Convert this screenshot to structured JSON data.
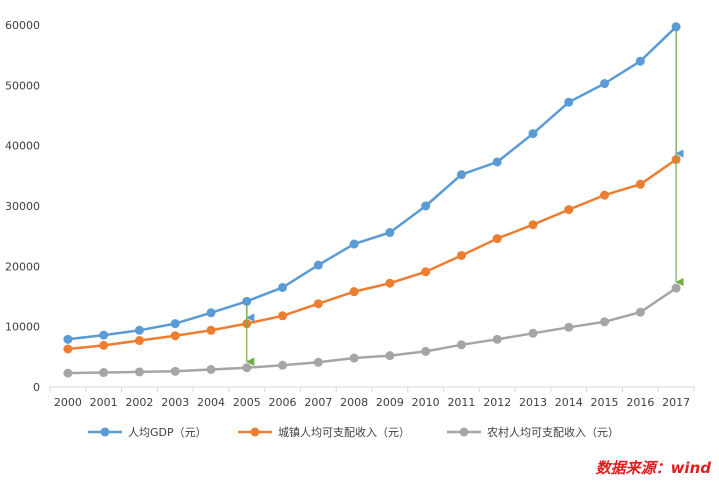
{
  "chart_data": {
    "type": "line",
    "title": "",
    "xlabel": "",
    "ylabel": "",
    "categories": [
      "2000",
      "2001",
      "2002",
      "2003",
      "2004",
      "2005",
      "2006",
      "2007",
      "2008",
      "2009",
      "2010",
      "2011",
      "2012",
      "2013",
      "2014",
      "2015",
      "2016",
      "2017"
    ],
    "yticks": [
      "0",
      "10000",
      "20000",
      "30000",
      "40000",
      "50000",
      "60000"
    ],
    "ylim": [
      0,
      60000
    ],
    "grid": false,
    "legend_position": "bottom",
    "series": [
      {
        "name": "人均GDP（元）",
        "color": "#5b9bd5",
        "values": [
          7900,
          8600,
          9400,
          10500,
          12300,
          14200,
          16500,
          20200,
          23700,
          25600,
          30000,
          35200,
          37300,
          42000,
          47200,
          50300,
          54000,
          59700
        ]
      },
      {
        "name": "城镇人均可支配收入（元）",
        "color": "#ed7d31",
        "values": [
          6300,
          6900,
          7700,
          8500,
          9400,
          10500,
          11800,
          13800,
          15800,
          17200,
          19100,
          21800,
          24600,
          26900,
          29400,
          31800,
          33600,
          37700
        ]
      },
      {
        "name": "农村人均可支配收入（元）",
        "color": "#a5a5a5",
        "values": [
          2300,
          2400,
          2500,
          2600,
          2900,
          3200,
          3600,
          4100,
          4800,
          5200,
          5900,
          7000,
          7900,
          8900,
          9900,
          10800,
          12400,
          16400
        ]
      }
    ],
    "annotations": [
      {
        "type": "arrow",
        "color": "#5b9bd5",
        "from_category": "2005",
        "from_value": 14200,
        "to_value": 10500
      },
      {
        "type": "arrow",
        "color": "#70ad47",
        "from_category": "2005",
        "from_value": 14200,
        "to_value": 3200
      },
      {
        "type": "arrow",
        "color": "#5b9bd5",
        "from_category": "2017",
        "from_value": 59700,
        "to_value": 37700
      },
      {
        "type": "arrow",
        "color": "#70ad47",
        "from_category": "2017",
        "from_value": 59700,
        "to_value": 16400
      }
    ]
  },
  "source": "数据来源：wind"
}
